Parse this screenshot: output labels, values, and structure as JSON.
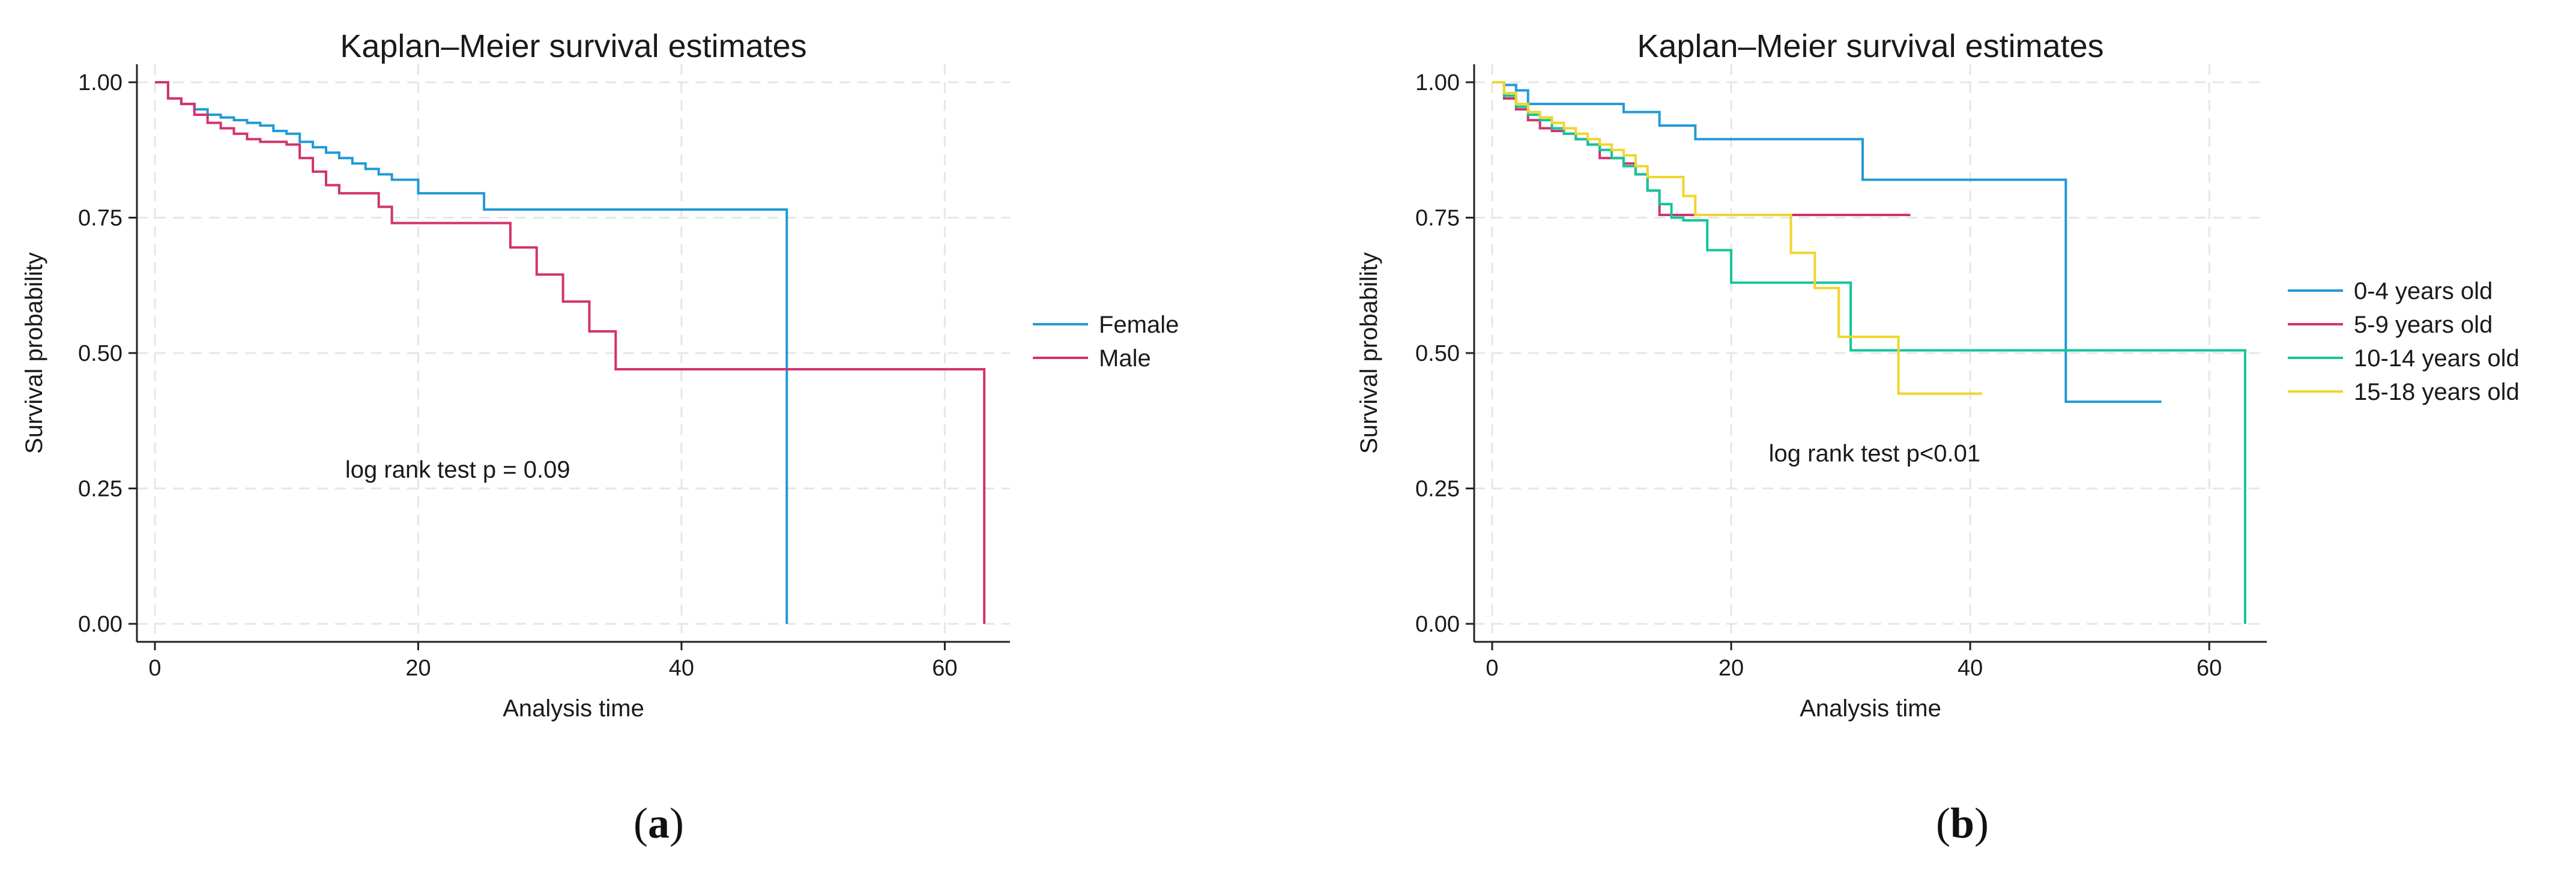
{
  "chart_data": [
    {
      "type": "line",
      "subtype": "kaplan-meier step",
      "panel_label_open": "(",
      "panel_label": "a",
      "panel_label_close": ")",
      "title": "Kaplan–Meier survival estimates",
      "xlabel": "Analysis time",
      "ylabel": "Survival probability",
      "xlim": [
        0,
        64
      ],
      "ylim": [
        0,
        1
      ],
      "xticks": [
        0,
        20,
        40,
        60
      ],
      "yticks": [
        0.0,
        0.25,
        0.5,
        0.75,
        1.0
      ],
      "xtick_labels": [
        "0",
        "20",
        "40",
        "60"
      ],
      "ytick_labels": [
        "0.00",
        "0.25",
        "0.50",
        "0.75",
        "1.00"
      ],
      "grid": true,
      "legend_position": "right",
      "annotation": {
        "text": "log rank test p = 0.09",
        "x": 23,
        "y": 0.27
      },
      "series": [
        {
          "name": "Female",
          "color": "#1f9ad6",
          "x": [
            0,
            1,
            2,
            3,
            4,
            5,
            6,
            7,
            8,
            9,
            10,
            11,
            12,
            13,
            14,
            15,
            16,
            17,
            18,
            20,
            25,
            48,
            48
          ],
          "y": [
            1.0,
            0.97,
            0.96,
            0.95,
            0.94,
            0.935,
            0.93,
            0.925,
            0.92,
            0.91,
            0.905,
            0.89,
            0.88,
            0.87,
            0.86,
            0.85,
            0.84,
            0.83,
            0.82,
            0.795,
            0.765,
            0.765,
            0.0
          ]
        },
        {
          "name": "Male",
          "color": "#d1336e",
          "x": [
            0,
            1,
            2,
            3,
            4,
            5,
            6,
            7,
            8,
            10,
            11,
            12,
            13,
            14,
            17,
            18,
            27,
            29,
            31,
            33,
            35,
            63,
            63
          ],
          "y": [
            1.0,
            0.97,
            0.96,
            0.94,
            0.925,
            0.915,
            0.905,
            0.895,
            0.89,
            0.885,
            0.86,
            0.835,
            0.81,
            0.795,
            0.77,
            0.74,
            0.695,
            0.645,
            0.595,
            0.54,
            0.47,
            0.47,
            0.0
          ]
        }
      ]
    },
    {
      "type": "line",
      "subtype": "kaplan-meier step",
      "panel_label_open": "(",
      "panel_label": "b",
      "panel_label_close": ")",
      "title": "Kaplan–Meier survival estimates",
      "xlabel": "Analysis time",
      "ylabel": "Survival probability",
      "xlim": [
        0,
        64
      ],
      "ylim": [
        0,
        1
      ],
      "xticks": [
        0,
        20,
        40,
        60
      ],
      "yticks": [
        0.0,
        0.25,
        0.5,
        0.75,
        1.0
      ],
      "xtick_labels": [
        "0",
        "20",
        "40",
        "60"
      ],
      "ytick_labels": [
        "0.00",
        "0.25",
        "0.50",
        "0.75",
        "1.00"
      ],
      "grid": true,
      "legend_position": "right",
      "annotation": {
        "text": "log rank test p<0.01",
        "x": 32,
        "y": 0.3
      },
      "series": [
        {
          "name": "0-4 years old",
          "color": "#1f9ad6",
          "x": [
            0,
            1,
            2,
            3,
            11,
            14,
            17,
            31,
            48,
            56
          ],
          "y": [
            1.0,
            0.995,
            0.985,
            0.96,
            0.945,
            0.92,
            0.895,
            0.82,
            0.41,
            0.41
          ]
        },
        {
          "name": "5-9 years old",
          "color": "#d1336e",
          "x": [
            0,
            1,
            2,
            3,
            4,
            5,
            6,
            7,
            8,
            9,
            11,
            12,
            13,
            14,
            35
          ],
          "y": [
            1.0,
            0.97,
            0.95,
            0.93,
            0.915,
            0.91,
            0.905,
            0.895,
            0.885,
            0.86,
            0.85,
            0.83,
            0.8,
            0.755,
            0.755
          ]
        },
        {
          "name": "10-14 years old",
          "color": "#12c59a",
          "x": [
            0,
            1,
            2,
            3,
            4,
            5,
            6,
            7,
            8,
            9,
            10,
            11,
            12,
            13,
            14,
            15,
            16,
            18,
            20,
            30,
            63,
            63
          ],
          "y": [
            1.0,
            0.975,
            0.955,
            0.94,
            0.93,
            0.915,
            0.905,
            0.895,
            0.885,
            0.875,
            0.86,
            0.845,
            0.83,
            0.8,
            0.775,
            0.75,
            0.745,
            0.69,
            0.63,
            0.505,
            0.505,
            0.0
          ]
        },
        {
          "name": "15-18 years old",
          "color": "#f1d52a",
          "x": [
            0,
            1,
            2,
            3,
            4,
            5,
            6,
            7,
            8,
            9,
            10,
            11,
            12,
            13,
            16,
            17,
            25,
            27,
            29,
            34,
            41
          ],
          "y": [
            1.0,
            0.98,
            0.96,
            0.945,
            0.935,
            0.925,
            0.915,
            0.905,
            0.895,
            0.885,
            0.875,
            0.865,
            0.845,
            0.825,
            0.79,
            0.755,
            0.685,
            0.62,
            0.53,
            0.425,
            0.425
          ]
        }
      ]
    }
  ]
}
